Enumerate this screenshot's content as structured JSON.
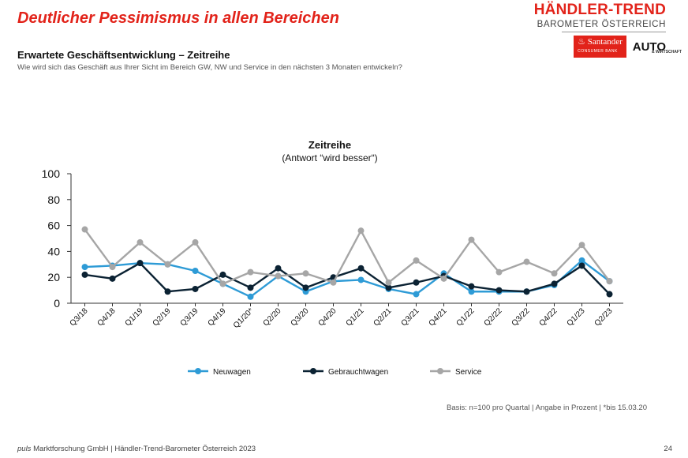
{
  "header": {
    "headline": "Deutlicher Pessimismus in allen Bereichen",
    "title": "Erwartete Geschäftsentwicklung – Zeitreihe",
    "subtitle": "Wie wird sich das Geschäft aus Ihrer Sicht im Bereich GW, NW und Service in den nächsten 3 Monaten entwickeln?"
  },
  "logo": {
    "brand": "HÄNDLER-TREND",
    "brand_sub": "BAROMETER ÖSTERREICH",
    "partner1": "Santander",
    "partner1_sub": "CONSUMER BANK",
    "partner2": "AUTO",
    "partner2_sub": "& WIRTSCHAFT"
  },
  "colors": {
    "neuwagen": "#2e9bd6",
    "gebrauchtwagen": "#0b2233",
    "service": "#a6a6a6",
    "headline": "#e2231a"
  },
  "chart_data": {
    "type": "line",
    "title": "Zeitreihe",
    "subtitle": "(Antwort “wird besser“)",
    "xlabel": "",
    "ylabel": "",
    "ylim": [
      0,
      100
    ],
    "yticks": [
      0,
      20,
      40,
      60,
      80,
      100
    ],
    "grid": false,
    "legend": "bottom",
    "categories": [
      "Q3/18",
      "Q4/18",
      "Q1/19",
      "Q2/19",
      "Q3/19",
      "Q4/19",
      "Q1/20*",
      "Q2/20",
      "Q3/20",
      "Q4/20",
      "Q1/21",
      "Q2/21",
      "Q3/21",
      "Q4/21",
      "Q1/22",
      "Q2/22",
      "Q3/22",
      "Q4/22",
      "Q1/23",
      "Q2/23"
    ],
    "series": [
      {
        "name": "Neuwagen",
        "color": "#2e9bd6",
        "values": [
          28,
          29,
          31,
          30,
          25,
          15,
          5,
          21,
          9,
          17,
          18,
          11,
          7,
          23,
          9,
          9,
          9,
          14,
          33,
          17
        ]
      },
      {
        "name": "Gebrauchtwagen",
        "color": "#0b2233",
        "values": [
          22,
          19,
          31,
          9,
          11,
          22,
          12,
          27,
          12,
          20,
          27,
          12,
          16,
          21,
          13,
          10,
          9,
          15,
          29,
          7
        ]
      },
      {
        "name": "Service",
        "color": "#a6a6a6",
        "values": [
          57,
          28,
          47,
          30,
          47,
          15,
          24,
          21,
          23,
          16,
          56,
          16,
          33,
          19,
          49,
          24,
          32,
          23,
          45,
          17
        ]
      }
    ]
  },
  "footer": {
    "basis": "Basis: n=100 pro Quartal | Angabe in Prozent | *bis 15.03.20",
    "company_italic": "puls",
    "company_rest": " Marktforschung GmbH | Händler-Trend-Barometer Österreich 2023",
    "page_number": "24"
  }
}
